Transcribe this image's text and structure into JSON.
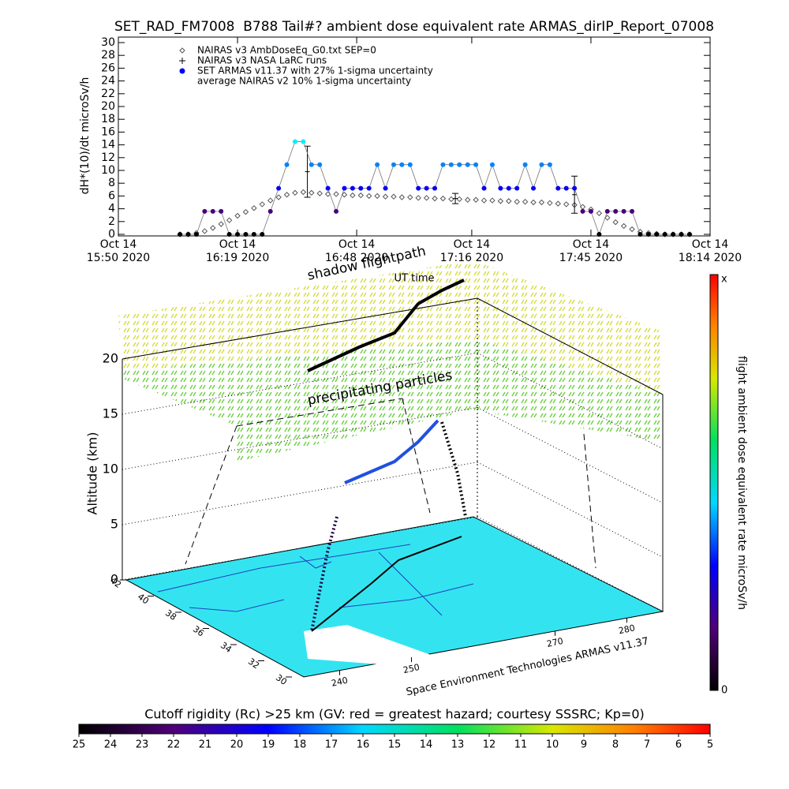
{
  "chart_data": [
    {
      "type": "line",
      "title": "SET_RAD_FM7008  B788 Tail#? ambient dose equivalent rate ARMAS_dirIP_Report_07008",
      "ylabel": "dH*(10)/dt microSv/h",
      "xlabel": "UT time",
      "annotations": [
        "average NAIRAS v2 10% 1-sigma uncertainty"
      ],
      "xlim": [
        "2020-10-14 15:50",
        "2020-10-14 18:14"
      ],
      "xticks": [
        {
          "value": "2020-10-14 15:50",
          "label": "Oct 14\n15:50 2020"
        },
        {
          "value": "2020-10-14 16:19",
          "label": "Oct 14\n16:19 2020"
        },
        {
          "value": "2020-10-14 16:48",
          "label": "Oct 14\n16:48 2020"
        },
        {
          "value": "2020-10-14 17:16",
          "label": "Oct 14\n17:16 2020"
        },
        {
          "value": "2020-10-14 17:45",
          "label": "Oct 14\n17:45 2020"
        },
        {
          "value": "2020-10-14 18:14",
          "label": "Oct 14\n18:14 2020"
        }
      ],
      "ylim": [
        0,
        30
      ],
      "yticks": [
        0,
        2,
        4,
        6,
        8,
        10,
        12,
        14,
        16,
        18,
        20,
        22,
        24,
        26,
        28,
        30
      ],
      "x": [
        "2020-10-14 16:05",
        "2020-10-14 16:07",
        "2020-10-14 16:09",
        "2020-10-14 16:11",
        "2020-10-14 16:13",
        "2020-10-14 16:15",
        "2020-10-14 16:17",
        "2020-10-14 16:19",
        "2020-10-14 16:21",
        "2020-10-14 16:23",
        "2020-10-14 16:25",
        "2020-10-14 16:27",
        "2020-10-14 16:29",
        "2020-10-14 16:31",
        "2020-10-14 16:33",
        "2020-10-14 16:35",
        "2020-10-14 16:37",
        "2020-10-14 16:39",
        "2020-10-14 16:41",
        "2020-10-14 16:43",
        "2020-10-14 16:45",
        "2020-10-14 16:47",
        "2020-10-14 16:49",
        "2020-10-14 16:51",
        "2020-10-14 16:53",
        "2020-10-14 16:55",
        "2020-10-14 16:57",
        "2020-10-14 16:59",
        "2020-10-14 17:01",
        "2020-10-14 17:03",
        "2020-10-14 17:05",
        "2020-10-14 17:07",
        "2020-10-14 17:09",
        "2020-10-14 17:11",
        "2020-10-14 17:13",
        "2020-10-14 17:15",
        "2020-10-14 17:17",
        "2020-10-14 17:19",
        "2020-10-14 17:21",
        "2020-10-14 17:23",
        "2020-10-14 17:25",
        "2020-10-14 17:27",
        "2020-10-14 17:29",
        "2020-10-14 17:31",
        "2020-10-14 17:33",
        "2020-10-14 17:35",
        "2020-10-14 17:37",
        "2020-10-14 17:39",
        "2020-10-14 17:41",
        "2020-10-14 17:43",
        "2020-10-14 17:45",
        "2020-10-14 17:47",
        "2020-10-14 17:49",
        "2020-10-14 17:51",
        "2020-10-14 17:53",
        "2020-10-14 17:55",
        "2020-10-14 17:57",
        "2020-10-14 17:59",
        "2020-10-14 18:01",
        "2020-10-14 18:03",
        "2020-10-14 18:05",
        "2020-10-14 18:07",
        "2020-10-14 18:09"
      ],
      "series": [
        {
          "name": "NAIRAS v3 AmbDoseEq_G0.txt SEP=0",
          "marker": "diamond",
          "color": "#555555",
          "values": [
            0,
            0,
            0.2,
            0.5,
            1,
            1.6,
            2.2,
            2.9,
            3.5,
            4.1,
            4.7,
            5.3,
            5.8,
            6.2,
            6.5,
            6.6,
            6.5,
            6.4,
            6.3,
            6.3,
            6.2,
            6.1,
            6.1,
            6.0,
            6.0,
            5.9,
            5.9,
            5.8,
            5.8,
            5.7,
            5.7,
            5.6,
            5.6,
            5.5,
            5.5,
            5.4,
            5.4,
            5.3,
            5.3,
            5.2,
            5.2,
            5.1,
            5.1,
            5.0,
            5.0,
            4.9,
            4.8,
            4.7,
            4.6,
            4.3,
            3.9,
            3.3,
            2.6,
            1.9,
            1.3,
            0.8,
            0.4,
            0.2,
            0.1,
            0,
            0,
            0,
            0
          ]
        },
        {
          "name": "NAIRAS v3 NASA LaRC runs",
          "marker": "plus",
          "color": "#000000",
          "x": [
            "2020-10-14 16:36",
            "2020-10-14 17:12",
            "2020-10-14 17:41"
          ],
          "values": [
            9.8,
            5.6,
            6.2
          ],
          "errors": [
            4,
            0.8,
            2.9
          ]
        },
        {
          "name": "SET ARMAS v11.37 with 27% 1-sigma uncertainty",
          "marker": "dot",
          "color": "#0000ff",
          "values": [
            0,
            0,
            0,
            3.6,
            3.6,
            3.6,
            0,
            0,
            0,
            0,
            0,
            3.6,
            7.2,
            10.9,
            14.5,
            14.5,
            10.9,
            10.9,
            7.2,
            3.6,
            7.2,
            7.2,
            7.2,
            7.2,
            10.9,
            7.2,
            10.9,
            10.9,
            10.9,
            7.2,
            7.2,
            7.2,
            10.9,
            10.9,
            10.9,
            10.9,
            10.9,
            7.2,
            10.9,
            7.2,
            7.2,
            7.2,
            10.9,
            7.2,
            10.9,
            10.9,
            7.2,
            7.2,
            7.2,
            3.6,
            3.6,
            0,
            3.6,
            3.6,
            3.6,
            3.6,
            0,
            0,
            0,
            0,
            0,
            0,
            0
          ]
        }
      ]
    },
    {
      "type": "3d-trajectory",
      "zlabel": "Altitude (km)",
      "zlim": [
        0,
        20
      ],
      "zticks": [
        0,
        5,
        10,
        15,
        20
      ],
      "latlim": [
        42,
        30
      ],
      "latticks": [
        30,
        32,
        34,
        36,
        38,
        40,
        42
      ],
      "lonlim": [
        235,
        285
      ],
      "lonticks": [
        240,
        250,
        270,
        280
      ],
      "annotations": [
        "shadow flightpath",
        "precipitating particles"
      ],
      "footer": "Space Environment Technologies ARMAS v11.37"
    },
    {
      "type": "colorbar",
      "orientation": "vertical",
      "label": "flight ambient dose equivalent rate microSv/h",
      "top_label": "x",
      "bottom_label": 0
    },
    {
      "type": "colorbar",
      "orientation": "horizontal",
      "title": "Cutoff rigidity (Rc) >25 km (GV: red = greatest hazard; courtesy SSSRC; Kp=0)",
      "xlim": [
        25,
        5
      ],
      "xticks": [
        25,
        24,
        23,
        22,
        21,
        20,
        19,
        18,
        17,
        16,
        15,
        14,
        13,
        12,
        11,
        10,
        9,
        8,
        7,
        6,
        5
      ]
    }
  ]
}
